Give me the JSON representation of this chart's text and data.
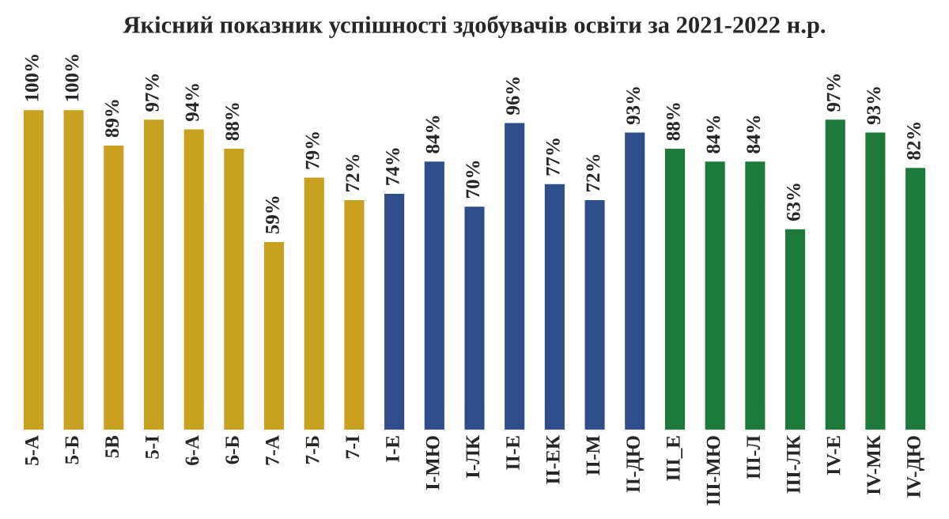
{
  "chart_data": {
    "type": "bar",
    "title": "Якісний показник успішності здобувачів освіти за 2021-2022 н.р.",
    "categories": [
      "5-А",
      "5-Б",
      "5В",
      "5-І",
      "6-А",
      "6-Б",
      "7-А",
      "7-Б",
      "7-І",
      "І-Е",
      "І-МЮ",
      "І-ЛК",
      "ІІ-Е",
      "ІІ-ЕК",
      "ІІ-М",
      "ІІ-ДЮ",
      "ІІІ_Е",
      "ІІІ-МЮ",
      "ІІІ-Л",
      "ІІІ-ЛК",
      "IV-Е",
      "IV-МК",
      "IV-ДЮ"
    ],
    "values": [
      100,
      100,
      89,
      97,
      94,
      88,
      59,
      79,
      72,
      74,
      84,
      70,
      96,
      77,
      72,
      93,
      88,
      84,
      84,
      63,
      97,
      93,
      82
    ],
    "value_labels": [
      "100%",
      "100%",
      "89%",
      "97%",
      "94%",
      "88%",
      "59%",
      "79%",
      "72%",
      "74%",
      "84%",
      "70%",
      "96%",
      "77%",
      "72%",
      "93%",
      "88%",
      "84%",
      "84%",
      "63%",
      "97%",
      "93%",
      "82%"
    ],
    "colors": [
      "#c9a120",
      "#c9a120",
      "#c9a120",
      "#c9a120",
      "#c9a120",
      "#c9a120",
      "#c9a120",
      "#c9a120",
      "#c9a120",
      "#2f4d8a",
      "#2f4d8a",
      "#2f4d8a",
      "#2f4d8a",
      "#2f4d8a",
      "#2f4d8a",
      "#2f4d8a",
      "#1d7a3a",
      "#1d7a3a",
      "#1d7a3a",
      "#1d7a3a",
      "#1d7a3a",
      "#1d7a3a",
      "#1d7a3a"
    ],
    "grid": false,
    "legend": false
  }
}
